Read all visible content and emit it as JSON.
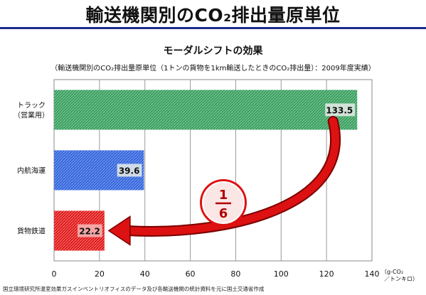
{
  "header": {
    "title": "輸送機関別のCO₂排出量原単位"
  },
  "footnote": "国立環境研究所温室効果ガスインベントリオフィスのデータ及び各輸送機関の統計資料を元に国土交通省作成",
  "chart_data": {
    "type": "bar",
    "orientation": "horizontal",
    "title": "モーダルシフトの効果",
    "subtitle": "（輸送機関別のCO₂排出量原単位（1トンの貨物を1km輸送したときのCO₂排出量）：2009年度実績）",
    "categories": [
      {
        "label_lines": [
          "トラック",
          "（営業用）"
        ]
      },
      {
        "label_lines": [
          "内航海運"
        ]
      },
      {
        "label_lines": [
          "貨物鉄道"
        ]
      }
    ],
    "values": [
      133.5,
      39.6,
      22.2
    ],
    "value_labels": [
      "133.5",
      "39.6",
      "22.2"
    ],
    "colors": [
      "#3a9e5f",
      "#3366dd",
      "#e01818"
    ],
    "xlim": [
      0,
      140
    ],
    "xticks": [
      0,
      20,
      40,
      60,
      80,
      100,
      120,
      140
    ],
    "xlabel_lines": [
      "（g-CO₂",
      "／トンキロ）"
    ],
    "grid": "vertical",
    "annotation": {
      "numerator": "1",
      "denominator": "6",
      "arrow_color": "#dd1111"
    }
  }
}
